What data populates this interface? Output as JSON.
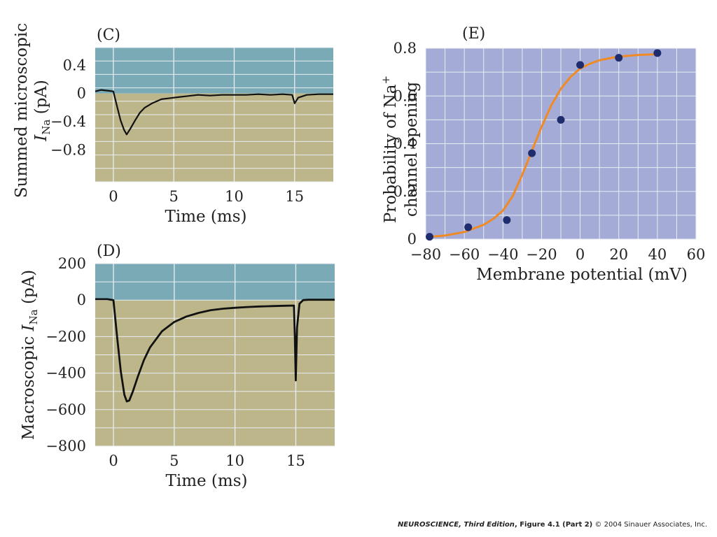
{
  "colors": {
    "above_zero": "#79aab6",
    "below_zero": "#bdb68b",
    "panel_e_bg": "#a3abd6",
    "grid": "#e9eef2",
    "trace": "#111111",
    "fit_curve": "#f08a24",
    "points": "#1f2c6e"
  },
  "chart_data": [
    {
      "id": "C",
      "label": "(C)",
      "type": "line",
      "xlabel": "Time (ms)",
      "ylabel_main": "Summed microscopic",
      "ylabel_sub_symbol": "I",
      "ylabel_sub_index": "Na",
      "ylabel_sub_unit": " (pA)",
      "xlim": [
        -1.5,
        18.2
      ],
      "ylim": [
        -1.25,
        0.65
      ],
      "xticks": [
        0,
        5,
        10,
        15
      ],
      "yticks": [
        0.4,
        0,
        -0.4,
        -0.8
      ],
      "ytick_labels": [
        "0.4",
        "0",
        "−0.4",
        "−0.8"
      ],
      "grid": true,
      "legend": "none",
      "series": [
        {
          "x": [
            -1.5,
            -1,
            -0.5,
            0,
            0.3,
            0.6,
            0.9,
            1.1,
            1.4,
            1.8,
            2.2,
            2.6,
            3.2,
            4,
            5,
            6,
            7,
            8,
            9,
            10,
            11,
            12,
            13,
            14,
            14.8,
            15,
            15.3,
            16,
            17,
            18.2
          ],
          "y": [
            0.03,
            0.05,
            0.04,
            0.03,
            -0.18,
            -0.38,
            -0.52,
            -0.58,
            -0.5,
            -0.38,
            -0.27,
            -0.2,
            -0.14,
            -0.08,
            -0.06,
            -0.04,
            -0.02,
            -0.03,
            -0.02,
            -0.02,
            -0.02,
            -0.01,
            -0.02,
            -0.01,
            -0.02,
            -0.14,
            -0.06,
            -0.02,
            -0.01,
            -0.01
          ]
        }
      ]
    },
    {
      "id": "D",
      "label": "(D)",
      "type": "line",
      "xlabel": "Time (ms)",
      "ylabel_main": "Macroscopic ",
      "ylabel_sub_symbol": "I",
      "ylabel_sub_index": "Na",
      "ylabel_sub_unit": " (pA)",
      "xlim": [
        -1.5,
        18.2
      ],
      "ylim": [
        -800,
        200
      ],
      "xticks": [
        0,
        5,
        10,
        15
      ],
      "yticks": [
        200,
        0,
        -200,
        -400,
        -600,
        -800
      ],
      "ytick_labels": [
        "200",
        "0",
        "−200",
        "−400",
        "−600",
        "−800"
      ],
      "grid": true,
      "legend": "none",
      "series": [
        {
          "x": [
            -1.5,
            -0.5,
            0,
            0.3,
            0.6,
            0.9,
            1.1,
            1.3,
            1.6,
            2,
            2.5,
            3,
            4,
            5,
            6,
            7,
            8,
            9,
            10,
            11,
            12,
            13,
            14,
            14.85,
            14.92,
            15,
            15.1,
            15.3,
            15.6,
            16,
            17,
            18.2
          ],
          "y": [
            5,
            5,
            0,
            -200,
            -390,
            -520,
            -555,
            -550,
            -500,
            -420,
            -330,
            -260,
            -170,
            -120,
            -90,
            -70,
            -55,
            -47,
            -42,
            -38,
            -35,
            -33,
            -31,
            -30,
            -200,
            -440,
            -150,
            -20,
            0,
            2,
            2,
            2
          ]
        }
      ]
    },
    {
      "id": "E",
      "label": "(E)",
      "type": "scatter",
      "xlabel": "Membrane potential (mV)",
      "ylabel_line1": "Probability of Na",
      "ylabel_line1_sup": "+",
      "ylabel_line2": "channel opening",
      "xlim": [
        -80,
        60
      ],
      "ylim": [
        0,
        0.8
      ],
      "xticks": [
        -80,
        -60,
        -40,
        -20,
        0,
        20,
        40,
        60
      ],
      "xtick_labels": [
        "−80",
        "−60",
        "−40",
        "−20",
        "0",
        "20",
        "40",
        "60"
      ],
      "yticks": [
        0,
        0.2,
        0.4,
        0.6,
        0.8
      ],
      "ytick_labels": [
        "0",
        "0.2",
        "0.4",
        "0.6",
        "0.8"
      ],
      "grid": true,
      "legend": "none",
      "points": {
        "x": [
          -78,
          -58,
          -38,
          -25,
          -10,
          0,
          20,
          40
        ],
        "y": [
          0.01,
          0.05,
          0.08,
          0.36,
          0.5,
          0.73,
          0.76,
          0.78
        ]
      },
      "fit": {
        "x": [
          -78,
          -70,
          -60,
          -50,
          -45,
          -40,
          -35,
          -30,
          -25,
          -20,
          -15,
          -10,
          -5,
          0,
          5,
          10,
          20,
          30,
          40
        ],
        "y": [
          0.01,
          0.015,
          0.03,
          0.06,
          0.085,
          0.12,
          0.18,
          0.27,
          0.37,
          0.47,
          0.56,
          0.63,
          0.68,
          0.715,
          0.735,
          0.75,
          0.765,
          0.772,
          0.775
        ]
      }
    }
  ],
  "credit": {
    "title": "NEUROSCIENCE, Third Edition",
    "figure": ", Figure 4.1 (Part 2)",
    "rights": "  © 2004 Sinauer Associates, Inc."
  }
}
